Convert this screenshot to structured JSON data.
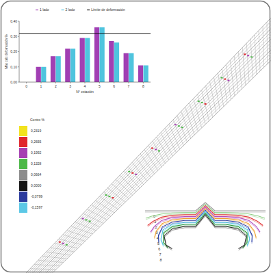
{
  "chart_data": {
    "type": "bar",
    "x_label": "N° estación",
    "y_label": "Máx calc deformación %",
    "x": [
      1,
      2,
      3,
      4,
      5,
      6,
      7,
      8
    ],
    "xlim": [
      -0.5,
      8.5
    ],
    "xticks": [
      0,
      1,
      2,
      3,
      4,
      5,
      6,
      7,
      8
    ],
    "ylim": [
      0,
      0.4
    ],
    "yticks": [
      {
        "value": 0,
        "label": "0,00"
      },
      {
        "value": 0.1,
        "label": "0,10"
      },
      {
        "value": 0.2,
        "label": "0,20"
      },
      {
        "value": 0.3,
        "label": "0,30"
      },
      {
        "value": 0.4,
        "label": "0,40"
      }
    ],
    "series": [
      {
        "name": "1 lado",
        "color": "#a13fb3",
        "values": [
          0.1,
          0.17,
          0.22,
          0.29,
          0.36,
          0.27,
          0.19,
          0.11
        ]
      },
      {
        "name": "2 lado",
        "color": "#4fc4de",
        "values": [
          0.1,
          0.17,
          0.22,
          0.29,
          0.36,
          0.26,
          0.19,
          0.11
        ]
      }
    ],
    "reference_lines": [
      {
        "name": "Límite de deformación",
        "value": 0.32,
        "color": "#000000"
      }
    ],
    "legend": "top",
    "grid": false
  },
  "color_legend": {
    "title": "Centro %",
    "items": [
      {
        "label": "0,2319",
        "color": "#f2e21e"
      },
      {
        "label": "0,2655",
        "color": "#e0262c"
      },
      {
        "label": "0,1992",
        "color": "#a63fb2"
      },
      {
        "label": "0,1328",
        "color": "#4db848"
      },
      {
        "label": "0,0664",
        "color": "#8c8c8c"
      },
      {
        "label": "0,0000",
        "color": "#151515"
      },
      {
        "label": "-0,0799",
        "color": "#2a3a9e"
      },
      {
        "label": "-0,1597",
        "color": "#5cc8e6"
      }
    ]
  },
  "profile_stations": [
    {
      "label": "0",
      "color": "#9a9a9a"
    },
    {
      "label": "1",
      "color": "#8fcf86"
    },
    {
      "label": "2",
      "color": "#e2383a"
    },
    {
      "label": "3",
      "color": "#b24fc0"
    },
    {
      "label": "4",
      "color": "#f0a232"
    },
    {
      "label": "5",
      "color": "#2b3fa8"
    },
    {
      "label": "6",
      "color": "#4fc3e0"
    },
    {
      "label": "7",
      "color": "#2d9a3a"
    },
    {
      "label": "8",
      "color": "#333333"
    }
  ]
}
